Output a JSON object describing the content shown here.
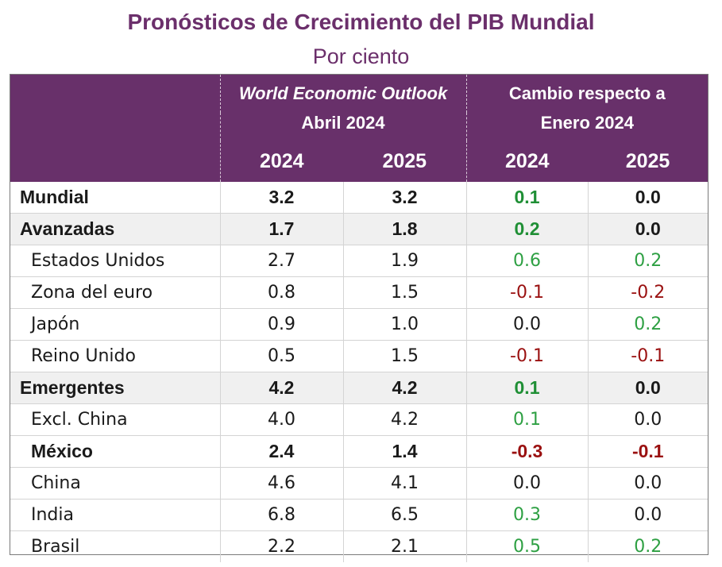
{
  "title": "Pronósticos de Crecimiento del PIB Mundial",
  "subtitle": "Por ciento",
  "header": {
    "weo_line1": "World Economic Outlook",
    "weo_line2": "Abril 2024",
    "change_line1": "Cambio respecto a",
    "change_line2": "Enero 2024",
    "years": [
      "2024",
      "2025",
      "2024",
      "2025"
    ]
  },
  "rows": [
    {
      "name": "Mundial",
      "v": [
        "3.2",
        "3.2",
        "0.1",
        "0.0"
      ]
    },
    {
      "name": "Avanzadas",
      "v": [
        "1.7",
        "1.8",
        "0.2",
        "0.0"
      ]
    },
    {
      "name": "Estados Unidos",
      "v": [
        "2.7",
        "1.9",
        "0.6",
        "0.2"
      ]
    },
    {
      "name": "Zona del euro",
      "v": [
        "0.8",
        "1.5",
        "-0.1",
        "-0.2"
      ]
    },
    {
      "name": "Japón",
      "v": [
        "0.9",
        "1.0",
        "0.0",
        "0.2"
      ]
    },
    {
      "name": "Reino Unido",
      "v": [
        "0.5",
        "1.5",
        "-0.1",
        "-0.1"
      ]
    },
    {
      "name": "Emergentes",
      "v": [
        "4.2",
        "4.2",
        "0.1",
        "0.0"
      ]
    },
    {
      "name": "Excl. China",
      "v": [
        "4.0",
        "4.2",
        "0.1",
        "0.0"
      ]
    },
    {
      "name": "México",
      "v": [
        "2.4",
        "1.4",
        "-0.3",
        "-0.1"
      ]
    },
    {
      "name": "China",
      "v": [
        "4.6",
        "4.1",
        "0.0",
        "0.0"
      ]
    },
    {
      "name": "India",
      "v": [
        "6.8",
        "6.5",
        "0.3",
        "0.0"
      ]
    },
    {
      "name": "Brasil",
      "v": [
        "2.2",
        "2.1",
        "0.5",
        "0.2"
      ]
    }
  ],
  "colors": {
    "header_bg": "#68306a",
    "title": "#6b2f6b",
    "positive": "#2ea043",
    "negative": "#9a1010"
  },
  "chart_data": {
    "type": "table",
    "title": "Pronósticos de Crecimiento del PIB Mundial",
    "subtitle": "Por ciento",
    "columns": [
      "World Economic Outlook Abril 2024 — 2024",
      "World Economic Outlook Abril 2024 — 2025",
      "Cambio respecto a Enero 2024 — 2024",
      "Cambio respecto a Enero 2024 — 2025"
    ],
    "categories": [
      "Mundial",
      "Avanzadas",
      "Estados Unidos",
      "Zona del euro",
      "Japón",
      "Reino Unido",
      "Emergentes",
      "Excl. China",
      "México",
      "China",
      "India",
      "Brasil"
    ],
    "series": [
      {
        "values": [
          3.2,
          1.7,
          2.7,
          0.8,
          0.9,
          0.5,
          4.2,
          4.0,
          2.4,
          4.6,
          6.8,
          2.2
        ]
      },
      {
        "values": [
          3.2,
          1.8,
          1.9,
          1.5,
          1.0,
          1.5,
          4.2,
          4.2,
          1.4,
          4.1,
          6.5,
          2.1
        ]
      },
      {
        "values": [
          0.1,
          0.2,
          0.6,
          -0.1,
          0.0,
          -0.1,
          0.1,
          0.1,
          -0.3,
          0.0,
          0.3,
          0.5
        ]
      },
      {
        "values": [
          0.0,
          0.0,
          0.2,
          -0.2,
          0.2,
          -0.1,
          0.0,
          0.0,
          -0.1,
          0.0,
          0.0,
          0.2
        ]
      }
    ]
  }
}
